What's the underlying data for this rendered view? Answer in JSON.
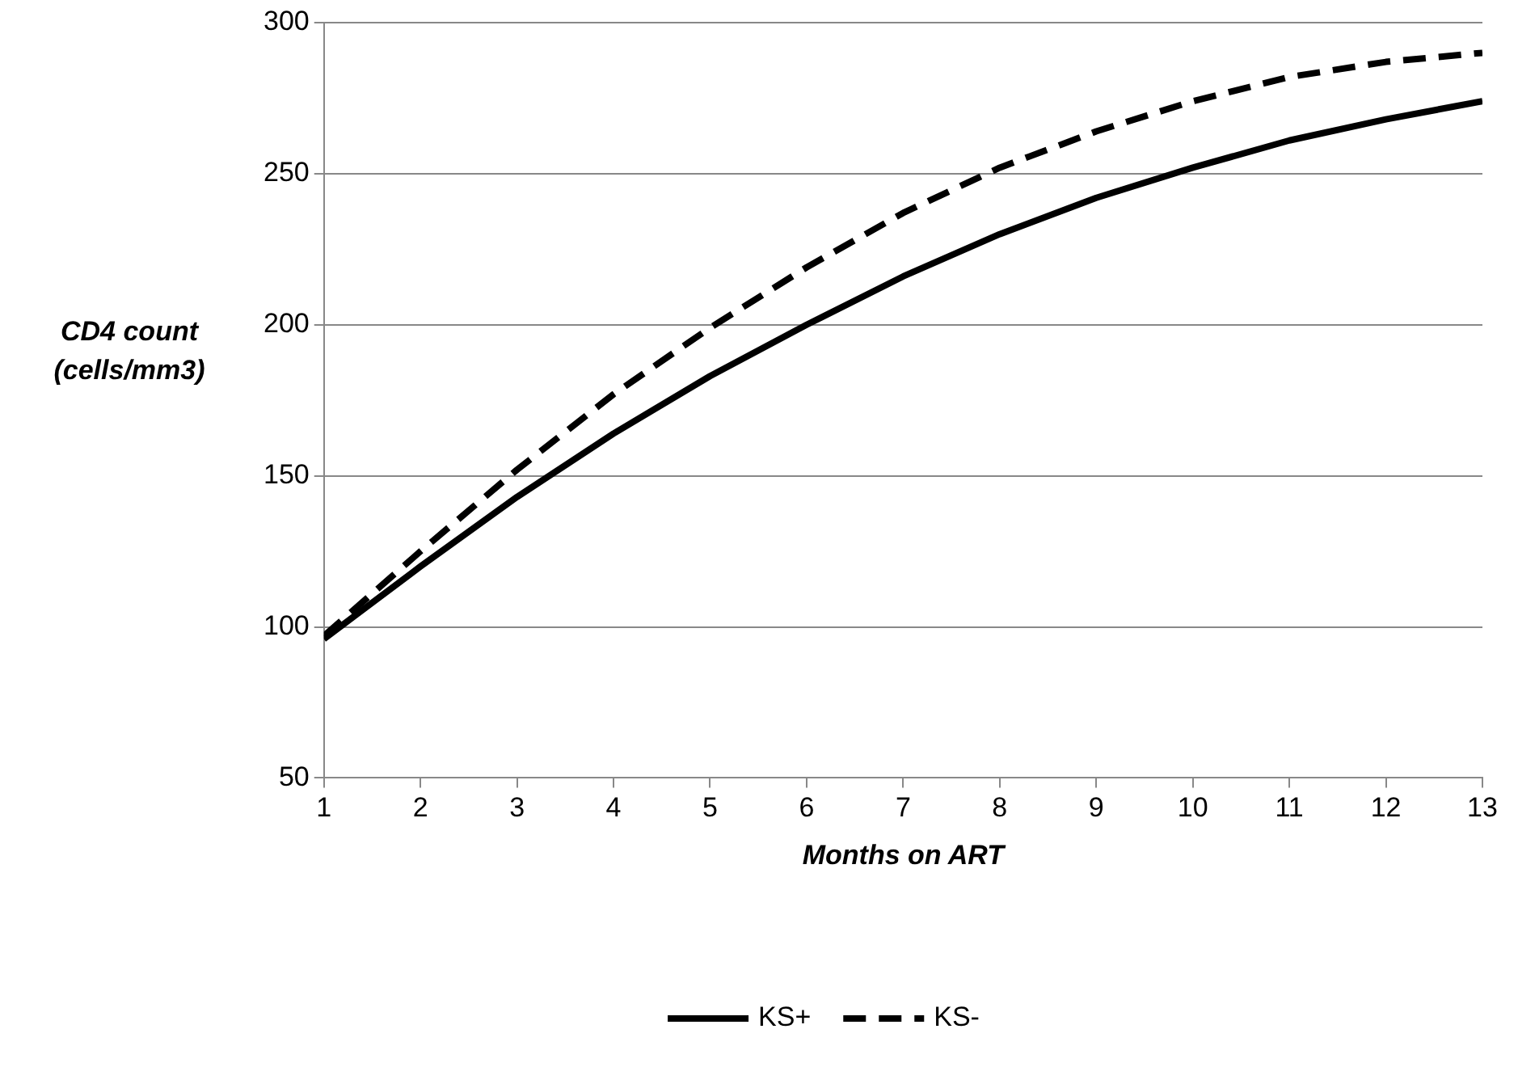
{
  "chart_data": {
    "type": "line",
    "xlabel": "Months on ART",
    "ylabel": "CD4 count\n(cells/mm3)",
    "x": [
      1,
      2,
      3,
      4,
      5,
      6,
      7,
      8,
      9,
      10,
      11,
      12,
      13
    ],
    "series": [
      {
        "name": "KS+",
        "color": "#000000",
        "line_style": "solid",
        "values": [
          96,
          120,
          143,
          164,
          183,
          200,
          216,
          230,
          242,
          252,
          261,
          268,
          274
        ]
      },
      {
        "name": "KS-",
        "color": "#000000",
        "line_style": "dashed",
        "values": [
          97,
          125,
          152,
          177,
          199,
          219,
          237,
          252,
          264,
          274,
          282,
          287,
          290
        ]
      }
    ],
    "xlim": [
      1,
      13
    ],
    "xticks": [
      1,
      2,
      3,
      4,
      5,
      6,
      7,
      8,
      9,
      10,
      11,
      12,
      13
    ],
    "ylim": [
      50,
      300
    ],
    "yticks": [
      50,
      100,
      150,
      200,
      250,
      300
    ],
    "grid": "y",
    "legend": "bottom",
    "marker": "none"
  }
}
